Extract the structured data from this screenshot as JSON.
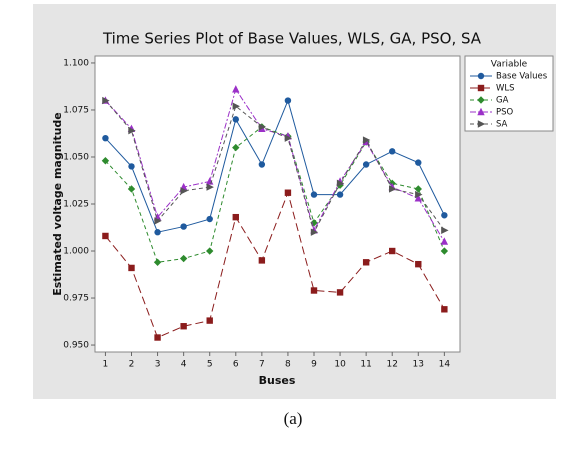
{
  "chart_data": {
    "type": "line",
    "title": "Time Series Plot of Base Values, WLS, GA, PSO, SA",
    "x_label": "Buses",
    "y_label": "Estimated voltage magnitude",
    "legend_title": "Variable",
    "legend": "right",
    "grid": false,
    "caption": "(a)",
    "x": [
      1,
      2,
      3,
      4,
      5,
      6,
      7,
      8,
      9,
      10,
      11,
      12,
      13,
      14
    ],
    "xlim": [
      0.6,
      14.6
    ],
    "xticks": [
      1,
      2,
      3,
      4,
      5,
      6,
      7,
      8,
      9,
      10,
      11,
      12,
      13,
      14
    ],
    "ylim": [
      0.9463,
      1.1037
    ],
    "yticks": [
      {
        "value": 0.95,
        "label": "0.950"
      },
      0.975,
      {
        "value": 1,
        "label": "1.000"
      },
      1.025,
      {
        "value": 1.05,
        "label": "1.050"
      },
      1.075,
      {
        "value": 1.1,
        "label": "1.100"
      }
    ],
    "series": [
      {
        "name": "Base Values",
        "color": "#1f5a9e",
        "marker": "circle",
        "line_style": "solid",
        "values": [
          1.06,
          1.045,
          1.01,
          1.013,
          1.017,
          1.07,
          1.046,
          1.08,
          1.03,
          1.03,
          1.046,
          1.053,
          1.047,
          1.019
        ]
      },
      {
        "name": "WLS",
        "color": "#8b1c1c",
        "marker": "square",
        "line_style": "longdash",
        "values": [
          1.008,
          0.991,
          0.954,
          0.96,
          0.963,
          1.018,
          0.995,
          1.031,
          0.979,
          0.978,
          0.994,
          1.0,
          0.993,
          0.969
        ]
      },
      {
        "name": "GA",
        "color": "#2e8b2e",
        "marker": "diamond",
        "line_style": "dashed",
        "values": [
          1.048,
          1.033,
          0.994,
          0.996,
          1.0,
          1.055,
          1.066,
          1.061,
          1.015,
          1.035,
          1.058,
          1.036,
          1.033,
          1.0
        ]
      },
      {
        "name": "PSO",
        "color": "#9b30c8",
        "marker": "triangle-up",
        "line_style": "dashdot",
        "values": [
          1.08,
          1.065,
          1.018,
          1.034,
          1.037,
          1.086,
          1.065,
          1.061,
          1.011,
          1.037,
          1.058,
          1.034,
          1.028,
          1.005
        ]
      },
      {
        "name": "SA",
        "color": "#555555",
        "marker": "triangle-right",
        "line_style": "dashed",
        "values": [
          1.08,
          1.064,
          1.016,
          1.032,
          1.034,
          1.077,
          1.066,
          1.06,
          1.01,
          1.036,
          1.059,
          1.033,
          1.03,
          1.011
        ]
      }
    ]
  }
}
